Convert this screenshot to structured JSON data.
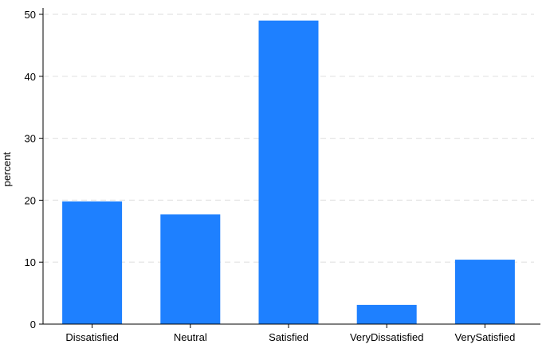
{
  "chart_data": {
    "type": "bar",
    "categories": [
      "Dissatisfied",
      "Neutral",
      "Satisfied",
      "VeryDissatisfied",
      "VerySatisfied"
    ],
    "values": [
      19.8,
      17.7,
      49.0,
      3.1,
      10.4
    ],
    "title": "",
    "xlabel": "",
    "ylabel": "percent",
    "ylim": [
      0,
      50
    ],
    "yticks": [
      0,
      10,
      20,
      30,
      40,
      50
    ],
    "grid": true,
    "bar_color": "#1e80ff",
    "grid_color": "#e4e4e4",
    "axis_color": "#000000"
  }
}
